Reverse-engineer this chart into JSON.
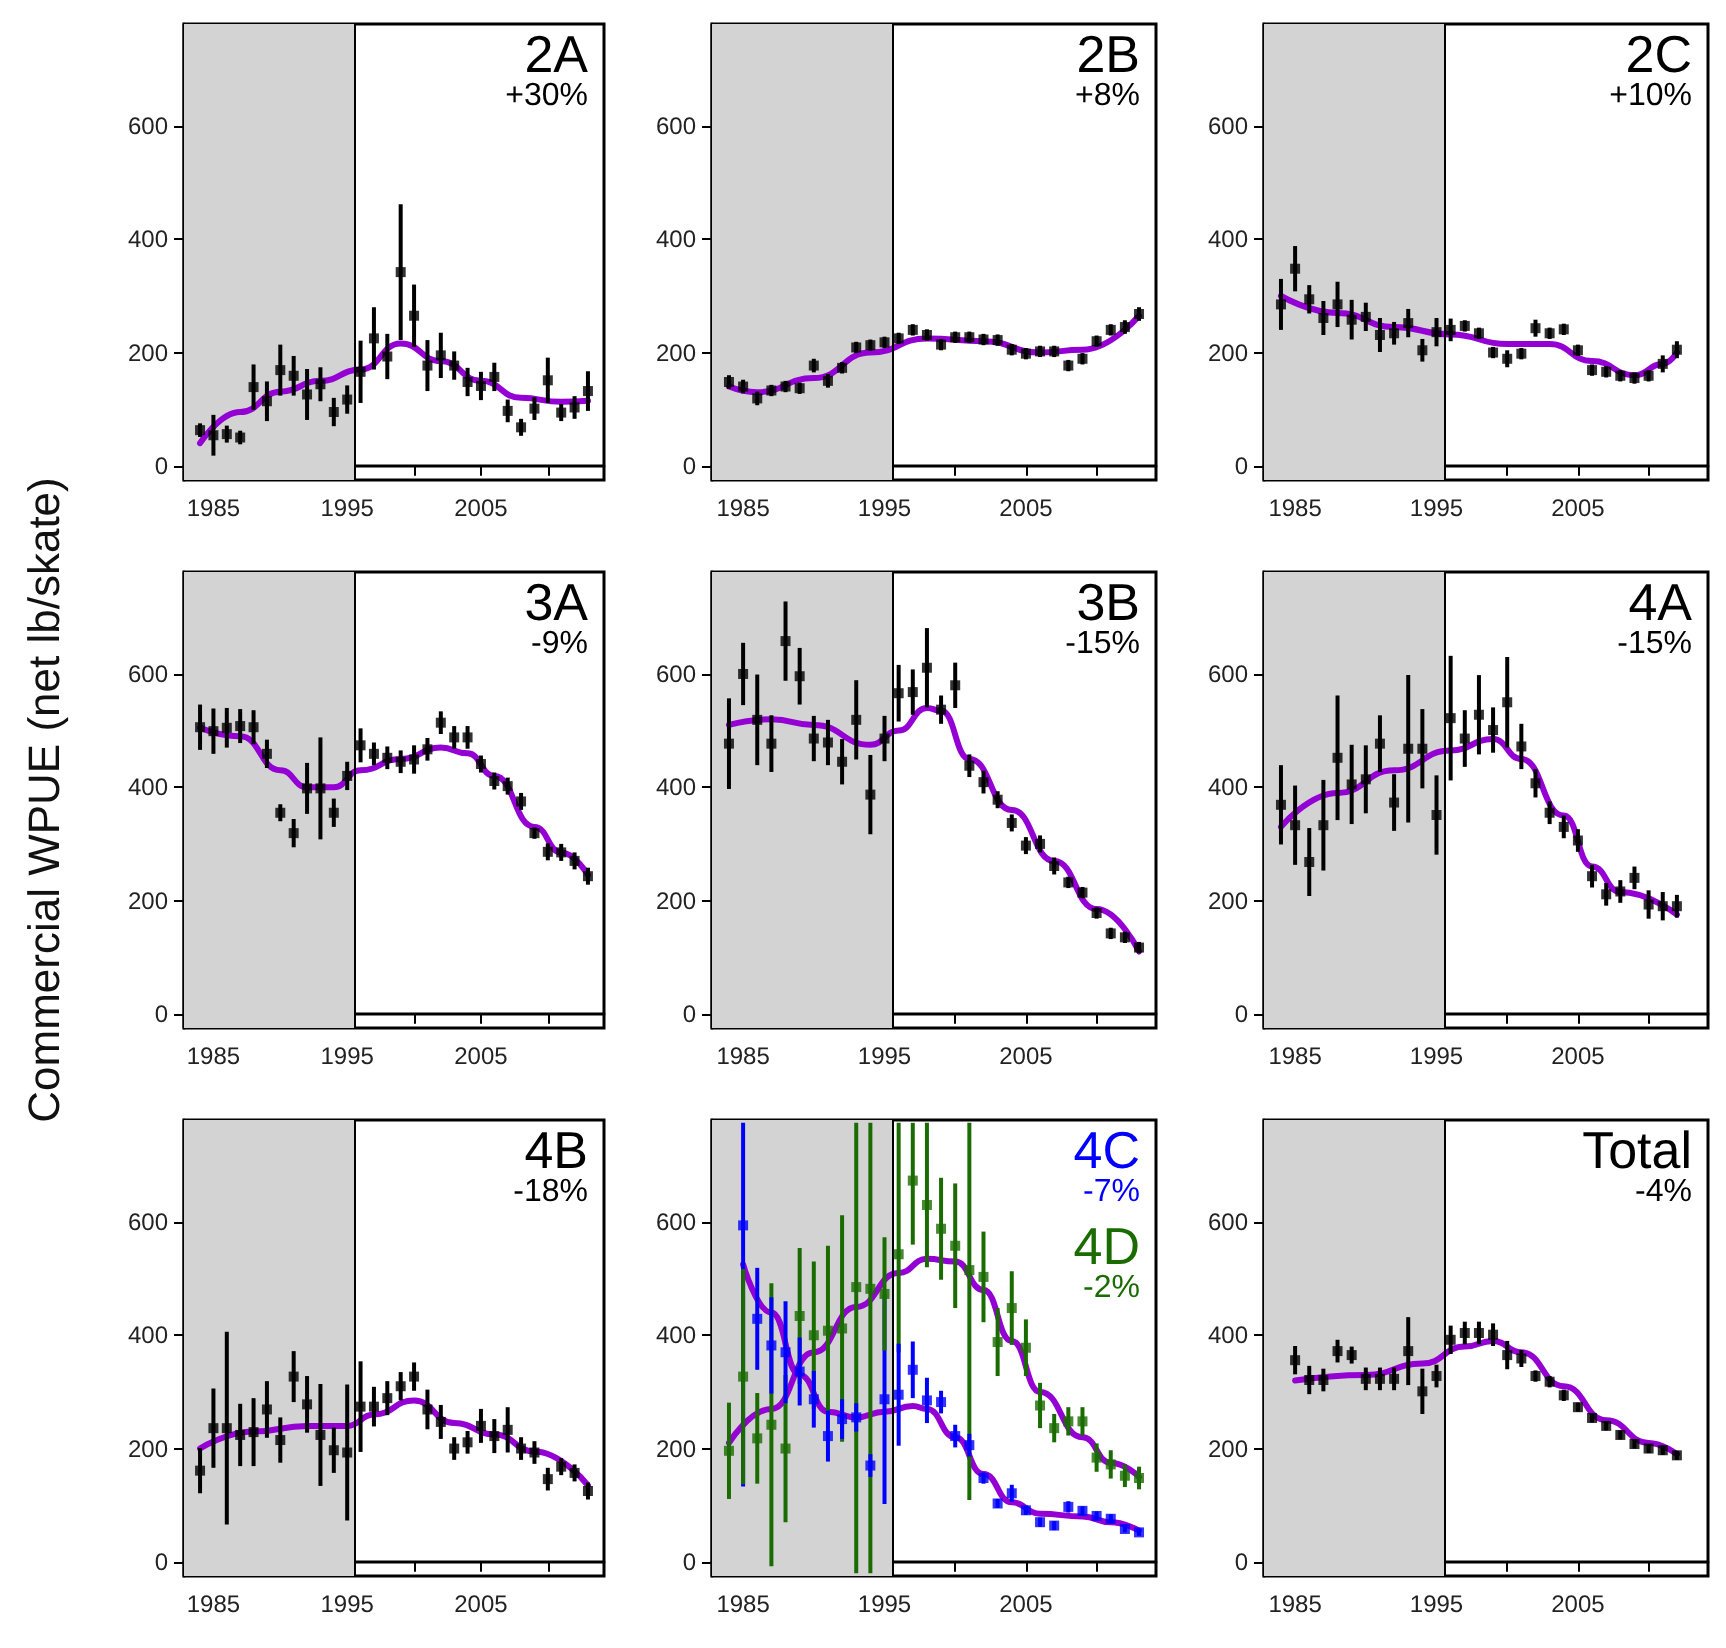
{
  "chart_data": [
    {
      "type": "scatter",
      "title": "2A",
      "subtitle": "+30%",
      "marker": "square",
      "xlim": [
        1982.8,
        2014.2
      ],
      "ylim": [
        -25,
        780
      ],
      "xticks": [
        1985,
        {
          "value": 1990,
          "label": null
        },
        1995,
        {
          "value": 2000,
          "label": null
        },
        2005,
        {
          "value": 2010,
          "label": null
        }
      ],
      "yticks": [
        0,
        200,
        400,
        600
      ],
      "bands": [
        {
          "axis": "x",
          "from": 1982.8,
          "to": 1995.6,
          "color": "#d3d3d3"
        }
      ],
      "ref_lines": [
        {
          "axis": "x",
          "value": 1995.6,
          "color": "#000000"
        }
      ],
      "x": [
        1984,
        1985,
        1986,
        1987,
        1988,
        1989,
        1990,
        1991,
        1992,
        1993,
        1994,
        1995,
        1996,
        1997,
        1998,
        1999,
        2000,
        2001,
        2002,
        2003,
        2004,
        2005,
        2006,
        2007,
        2008,
        2009,
        2010,
        2011,
        2012,
        2013
      ],
      "series": [
        {
          "color": "#000000",
          "values": [
            63,
            54,
            56,
            50,
            139,
            114,
            169,
            159,
            126,
            144,
            95,
            117,
            166,
            225,
            193,
            342,
            265,
            177,
            195,
            177,
            148,
            141,
            157,
            97,
            68,
            101,
            151,
            94,
            103,
            132
          ],
          "errors": [
            12,
            36,
            15,
            12,
            40,
            35,
            45,
            35,
            45,
            30,
            25,
            25,
            55,
            55,
            40,
            120,
            55,
            45,
            40,
            25,
            25,
            25,
            25,
            20,
            15,
            20,
            40,
            15,
            20,
            35
          ]
        },
        {
          "type": "line",
          "marker": "none",
          "color": "#9400d3",
          "x": [
            1984,
            1987,
            1990,
            1993,
            1996,
            1999,
            2002,
            2005,
            2008,
            2011,
            2013
          ],
          "values": [
            40,
            95,
            131,
            150,
            170,
            216,
            185,
            150,
            120,
            113,
            115
          ]
        }
      ]
    },
    {
      "type": "scatter",
      "title": "2B",
      "subtitle": "+8%",
      "marker": "square",
      "xlim": [
        1982.8,
        2014.2
      ],
      "ylim": [
        -25,
        780
      ],
      "xticks": [
        1985,
        {
          "value": 1990,
          "label": null
        },
        1995,
        {
          "value": 2000,
          "label": null
        },
        2005,
        {
          "value": 2010,
          "label": null
        }
      ],
      "yticks": [
        0,
        200,
        400,
        600
      ],
      "bands": [
        {
          "axis": "x",
          "from": 1982.8,
          "to": 1995.6,
          "color": "#d3d3d3"
        }
      ],
      "ref_lines": [
        {
          "axis": "x",
          "value": 1995.6,
          "color": "#000000"
        }
      ],
      "x": [
        1984,
        1985,
        1986,
        1987,
        1988,
        1989,
        1990,
        1991,
        1992,
        1993,
        1994,
        1995,
        1996,
        1997,
        1998,
        1999,
        2000,
        2001,
        2002,
        2003,
        2004,
        2005,
        2006,
        2007,
        2008,
        2009,
        2010,
        2011,
        2012,
        2013
      ],
      "series": [
        {
          "color": "#000000",
          "values": [
            148,
            140,
            119,
            133,
            140,
            137,
            177,
            150,
            173,
            209,
            213,
            218,
            225,
            240,
            231,
            214,
            227,
            227,
            223,
            222,
            205,
            198,
            202,
            202,
            177,
            189,
            220,
            240,
            245,
            268
          ],
          "errors": [
            12,
            12,
            12,
            10,
            10,
            10,
            12,
            12,
            10,
            10,
            10,
            10,
            10,
            10,
            10,
            10,
            10,
            10,
            10,
            10,
            10,
            10,
            10,
            10,
            10,
            10,
            10,
            10,
            12,
            12
          ]
        },
        {
          "type": "line",
          "marker": "none",
          "color": "#9400d3",
          "x": [
            1984,
            1986,
            1990,
            1994,
            1998,
            2002,
            2006,
            2009,
            2013
          ],
          "values": [
            140,
            130,
            155,
            200,
            225,
            220,
            200,
            205,
            265
          ]
        }
      ]
    },
    {
      "type": "scatter",
      "title": "2C",
      "subtitle": "+10%",
      "marker": "square",
      "xlim": [
        1982.8,
        2014.2
      ],
      "ylim": [
        -25,
        780
      ],
      "xticks": [
        1985,
        {
          "value": 1990,
          "label": null
        },
        1995,
        {
          "value": 2000,
          "label": null
        },
        2005,
        {
          "value": 2010,
          "label": null
        }
      ],
      "yticks": [
        0,
        200,
        400,
        600
      ],
      "bands": [
        {
          "axis": "x",
          "from": 1982.8,
          "to": 1995.6,
          "color": "#d3d3d3"
        }
      ],
      "ref_lines": [
        {
          "axis": "x",
          "value": 1995.6,
          "color": "#000000"
        }
      ],
      "x": [
        1984,
        1985,
        1986,
        1987,
        1988,
        1989,
        1990,
        1991,
        1992,
        1993,
        1994,
        1995,
        1996,
        1997,
        1998,
        1999,
        2000,
        2001,
        2002,
        2003,
        2004,
        2005,
        2006,
        2007,
        2008,
        2009,
        2010,
        2011,
        2012
      ],
      "series": [
        {
          "color": "#000000",
          "values": [
            285,
            348,
            294,
            261,
            285,
            258,
            263,
            231,
            234,
            252,
            204,
            236,
            240,
            247,
            234,
            200,
            189,
            198,
            243,
            234,
            241,
            204,
            169,
            166,
            159,
            155,
            159,
            180,
            205
          ],
          "errors": [
            45,
            40,
            25,
            30,
            40,
            35,
            25,
            30,
            20,
            25,
            20,
            25,
            20,
            10,
            10,
            10,
            15,
            10,
            15,
            10,
            10,
            10,
            10,
            10,
            10,
            10,
            10,
            15,
            15
          ]
        },
        {
          "type": "line",
          "marker": "none",
          "color": "#9400d3",
          "x": [
            1984,
            1988,
            1992,
            1996,
            2000,
            2003,
            2006,
            2009,
            2011,
            2012
          ],
          "values": [
            300,
            270,
            245,
            232,
            215,
            215,
            185,
            160,
            180,
            200
          ]
        }
      ]
    },
    {
      "type": "scatter",
      "title": "3A",
      "subtitle": "-9%",
      "ylabel": "Commercial WPUE (net lb/skate)",
      "marker": "square",
      "xlim": [
        1982.8,
        2014.2
      ],
      "ylim": [
        -25,
        780
      ],
      "xticks": [
        1985,
        {
          "value": 1990,
          "label": null
        },
        1995,
        {
          "value": 2000,
          "label": null
        },
        2005,
        {
          "value": 2010,
          "label": null
        }
      ],
      "yticks": [
        0,
        200,
        400,
        600
      ],
      "bands": [
        {
          "axis": "x",
          "from": 1982.8,
          "to": 1995.6,
          "color": "#d3d3d3"
        }
      ],
      "ref_lines": [
        {
          "axis": "x",
          "value": 1995.6,
          "color": "#000000"
        }
      ],
      "x": [
        1984,
        1985,
        1986,
        1987,
        1988,
        1989,
        1990,
        1991,
        1992,
        1993,
        1994,
        1995,
        1996,
        1997,
        1998,
        1999,
        2000,
        2001,
        2002,
        2003,
        2004,
        2005,
        2006,
        2007,
        2008,
        2009,
        2010,
        2011,
        2012,
        2013
      ],
      "series": [
        {
          "color": "#000000",
          "values": [
            506,
            499,
            505,
            508,
            506,
            459,
            355,
            319,
            398,
            398,
            355,
            420,
            474,
            459,
            452,
            445,
            449,
            467,
            514,
            488,
            488,
            441,
            411,
            402,
            375,
            319,
            286,
            285,
            270,
            243
          ],
          "errors": [
            40,
            40,
            35,
            30,
            30,
            25,
            15,
            25,
            45,
            90,
            25,
            25,
            30,
            20,
            20,
            20,
            25,
            20,
            20,
            20,
            20,
            15,
            15,
            15,
            15,
            10,
            15,
            15,
            15,
            15
          ]
        },
        {
          "type": "line",
          "marker": "none",
          "color": "#9400d3",
          "x": [
            1984,
            1987,
            1990,
            1992,
            1994,
            1996,
            1999,
            2002,
            2004,
            2006,
            2009,
            2011,
            2013
          ],
          "values": [
            505,
            490,
            430,
            400,
            400,
            430,
            450,
            470,
            460,
            420,
            330,
            285,
            245
          ]
        }
      ]
    },
    {
      "type": "scatter",
      "title": "3B",
      "subtitle": "-15%",
      "marker": "square",
      "xlim": [
        1982.8,
        2014.2
      ],
      "ylim": [
        -25,
        780
      ],
      "xticks": [
        1985,
        {
          "value": 1990,
          "label": null
        },
        1995,
        {
          "value": 2000,
          "label": null
        },
        2005,
        {
          "value": 2010,
          "label": null
        }
      ],
      "yticks": [
        0,
        200,
        400,
        600
      ],
      "bands": [
        {
          "axis": "x",
          "from": 1982.8,
          "to": 1995.6,
          "color": "#d3d3d3"
        }
      ],
      "ref_lines": [
        {
          "axis": "x",
          "value": 1995.6,
          "color": "#000000"
        }
      ],
      "x": [
        1984,
        1985,
        1986,
        1987,
        1988,
        1989,
        1990,
        1991,
        1992,
        1993,
        1994,
        1995,
        1996,
        1997,
        1998,
        1999,
        2000,
        2001,
        2002,
        2003,
        2004,
        2005,
        2006,
        2007,
        2008,
        2009,
        2010,
        2011,
        2012,
        2013
      ],
      "series": [
        {
          "color": "#000000",
          "values": [
            477,
            600,
            519,
            477,
            658,
            596,
            486,
            479,
            445,
            519,
            387,
            486,
            566,
            568,
            611,
            537,
            580,
            438,
            409,
            378,
            337,
            297,
            300,
            261,
            232,
            214,
            178,
            142,
            135,
            117
          ],
          "errors": [
            80,
            55,
            80,
            50,
            70,
            50,
            40,
            40,
            40,
            70,
            70,
            40,
            50,
            40,
            70,
            25,
            40,
            20,
            20,
            15,
            15,
            15,
            15,
            15,
            10,
            10,
            10,
            10,
            10,
            10
          ]
        },
        {
          "type": "line",
          "marker": "none",
          "color": "#9400d3",
          "x": [
            1984,
            1987,
            1990,
            1994,
            1996,
            1998,
            1999,
            2001,
            2004,
            2007,
            2010,
            2013
          ],
          "values": [
            510,
            520,
            510,
            475,
            500,
            540,
            535,
            450,
            360,
            270,
            185,
            110
          ]
        }
      ]
    },
    {
      "type": "scatter",
      "title": "4A",
      "subtitle": "-15%",
      "marker": "square",
      "xlim": [
        1982.8,
        2014.2
      ],
      "ylim": [
        -25,
        780
      ],
      "xticks": [
        1985,
        {
          "value": 1990,
          "label": null
        },
        1995,
        {
          "value": 2000,
          "label": null
        },
        2005,
        {
          "value": 2010,
          "label": null
        }
      ],
      "yticks": [
        0,
        200,
        400,
        600
      ],
      "bands": [
        {
          "axis": "x",
          "from": 1982.8,
          "to": 1995.6,
          "color": "#d3d3d3"
        }
      ],
      "ref_lines": [
        {
          "axis": "x",
          "value": 1995.6,
          "color": "#000000"
        }
      ],
      "x": [
        1984,
        1985,
        1986,
        1987,
        1988,
        1989,
        1990,
        1991,
        1992,
        1993,
        1994,
        1995,
        1996,
        1997,
        1998,
        1999,
        2000,
        2001,
        2002,
        2003,
        2004,
        2005,
        2006,
        2007,
        2008,
        2009,
        2010,
        2011,
        2012
      ],
      "series": [
        {
          "color": "#000000",
          "values": [
            369,
            333,
            268,
            333,
            452,
            405,
            414,
            477,
            373,
            468,
            468,
            351,
            522,
            486,
            528,
            501,
            550,
            472,
            407,
            355,
            330,
            306,
            243,
            211,
            216,
            240,
            193,
            190,
            190
          ],
          "errors": [
            70,
            70,
            60,
            80,
            110,
            70,
            60,
            50,
            50,
            130,
            70,
            70,
            110,
            50,
            70,
            40,
            80,
            40,
            25,
            20,
            20,
            20,
            20,
            20,
            20,
            20,
            25,
            25,
            20
          ]
        },
        {
          "type": "line",
          "marker": "none",
          "color": "#9400d3",
          "x": [
            1984,
            1988,
            1992,
            1996,
            1999,
            2001,
            2004,
            2006,
            2008,
            2012
          ],
          "values": [
            330,
            390,
            430,
            465,
            485,
            450,
            350,
            260,
            215,
            175
          ]
        }
      ]
    },
    {
      "type": "scatter",
      "title": "4B",
      "subtitle": "-18%",
      "marker": "square",
      "xlim": [
        1982.8,
        2014.2
      ],
      "ylim": [
        -25,
        780
      ],
      "xticks": [
        1985,
        {
          "value": 1990,
          "label": null
        },
        1995,
        {
          "value": 2000,
          "label": null
        },
        2005,
        {
          "value": 2010,
          "label": null
        }
      ],
      "yticks": [
        0,
        200,
        400,
        600
      ],
      "bands": [
        {
          "axis": "x",
          "from": 1982.8,
          "to": 1995.6,
          "color": "#d3d3d3"
        }
      ],
      "ref_lines": [
        {
          "axis": "x",
          "value": 1995.6,
          "color": "#000000"
        }
      ],
      "x": [
        1984,
        1985,
        1986,
        1987,
        1988,
        1989,
        1990,
        1991,
        1992,
        1993,
        1994,
        1995,
        1996,
        1997,
        1998,
        1999,
        2000,
        2001,
        2002,
        2003,
        2004,
        2005,
        2006,
        2007,
        2008,
        2009,
        2010,
        2011,
        2012,
        2013
      ],
      "series": [
        {
          "color": "#000000",
          "values": [
            161,
            236,
            236,
            224,
            229,
            269,
            215,
            327,
            278,
            224,
            197,
            193,
            274,
            274,
            289,
            310,
            327,
            269,
            247,
            200,
            211,
            240,
            222,
            233,
            200,
            193,
            146,
            168,
            157,
            125
          ],
          "errors": [
            40,
            70,
            170,
            55,
            60,
            50,
            40,
            45,
            50,
            90,
            40,
            120,
            80,
            35,
            30,
            25,
            25,
            35,
            30,
            20,
            20,
            30,
            30,
            40,
            20,
            20,
            20,
            15,
            15,
            15
          ]
        },
        {
          "type": "line",
          "marker": "none",
          "color": "#9400d3",
          "x": [
            1984,
            1988,
            1992,
            1995,
            1997,
            2000,
            2003,
            2006,
            2009,
            2013
          ],
          "values": [
            200,
            230,
            240,
            240,
            260,
            285,
            245,
            225,
            195,
            135
          ]
        }
      ]
    },
    {
      "type": "scatter",
      "annotations": [
        "-7%",
        "-2%"
      ],
      "marker": "square",
      "xlim": [
        1982.8,
        2014.2
      ],
      "ylim": [
        -25,
        780
      ],
      "xticks": [
        1985,
        {
          "value": 1990,
          "label": null
        },
        1995,
        {
          "value": 2000,
          "label": null
        },
        2005,
        {
          "value": 2010,
          "label": null
        }
      ],
      "yticks": [
        0,
        200,
        400,
        600
      ],
      "bands": [
        {
          "axis": "x",
          "from": 1982.8,
          "to": 1995.6,
          "color": "#d3d3d3"
        }
      ],
      "ref_lines": [
        {
          "axis": "x",
          "value": 1995.6,
          "color": "#000000"
        }
      ],
      "series": [
        {
          "name": "4C",
          "color": "#0000ff",
          "x": [
            1985,
            1986,
            1987,
            1988,
            1989,
            1990,
            1991,
            1992,
            1993,
            1994,
            1995,
            1996,
            1997,
            1998,
            1999,
            2000,
            2001,
            2002,
            2003,
            2004,
            2005,
            2006,
            2007,
            2008,
            2009,
            2010,
            2011,
            2012,
            2013
          ],
          "values": [
            594,
            429,
            382,
            370,
            336,
            287,
            222,
            252,
            255,
            170,
            287,
            295,
            339,
            285,
            282,
            222,
            206,
            148,
            103,
            121,
            91,
            70,
            64,
            97,
            90,
            81,
            76,
            58,
            52
          ],
          "errors": [
            [
              133,
              775
            ],
            90,
            85,
            90,
            60,
            50,
            45,
            35,
            25,
            20,
            185,
            90,
            50,
            40,
            20,
            20,
            20,
            10,
            8,
            15,
            8,
            8,
            8,
            10,
            8,
            8,
            8,
            6,
            6
          ]
        },
        {
          "name": "4D",
          "color": "#1a6b00",
          "x": [
            1984,
            1985,
            1986,
            1987,
            1988,
            1989,
            1990,
            1991,
            1992,
            1993,
            1994,
            1995,
            1996,
            1997,
            1998,
            1999,
            2000,
            2001,
            2002,
            2003,
            2004,
            2005,
            2006,
            2007,
            2008,
            2009,
            2010,
            2011,
            2012,
            2013
          ],
          "values": [
            196,
            327,
            218,
            242,
            200,
            434,
            400,
            408,
            412,
            485,
            482,
            473,
            543,
            673,
            630,
            588,
            558,
            515,
            503,
            388,
            448,
            378,
            276,
            236,
            248,
            248,
            184,
            172,
            152,
            148
          ],
          "errors": [
            85,
            190,
            80,
            250,
            130,
            120,
            130,
            150,
            200,
            [
              -20,
              775
            ],
            [
              -20,
              775
            ],
            100,
            [
              370,
              775
            ],
            [
              560,
              775
            ],
            [
              520,
              775
            ],
            90,
            110,
            [
              109,
              775
            ],
            80,
            60,
            65,
            50,
            40,
            25,
            25,
            25,
            25,
            25,
            20,
            20
          ]
        },
        {
          "type": "line",
          "marker": "none",
          "color": "#9400d3",
          "x": [
            1985,
            1987,
            1989,
            1991,
            1993,
            1995,
            1997,
            1998,
            2000,
            2002,
            2004,
            2006,
            2009,
            2011,
            2013
          ],
          "values": [
            525,
            440,
            330,
            265,
            255,
            265,
            275,
            270,
            220,
            155,
            105,
            85,
            80,
            70,
            55
          ]
        },
        {
          "type": "line",
          "marker": "none",
          "color": "#9400d3",
          "x": [
            1984,
            1987,
            1990,
            1993,
            1996,
            1998,
            2000,
            2002,
            2004,
            2006,
            2009,
            2011,
            2013
          ],
          "values": [
            210,
            270,
            370,
            450,
            510,
            535,
            530,
            480,
            390,
            300,
            220,
            175,
            150
          ]
        }
      ]
    },
    {
      "type": "scatter",
      "title": "Total",
      "subtitle": "-4%",
      "marker": "square",
      "xlim": [
        1982.8,
        2014.2
      ],
      "ylim": [
        -25,
        780
      ],
      "xticks": [
        1985,
        {
          "value": 1990,
          "label": null
        },
        1995,
        {
          "value": 2000,
          "label": null
        },
        2005,
        {
          "value": 2010,
          "label": null
        }
      ],
      "yticks": [
        0,
        200,
        400,
        600
      ],
      "bands": [
        {
          "axis": "x",
          "from": 1982.8,
          "to": 1995.6,
          "color": "#d3d3d3"
        }
      ],
      "ref_lines": [
        {
          "axis": "x",
          "value": 1995.6,
          "color": "#000000"
        }
      ],
      "x": [
        1985,
        1986,
        1987,
        1988,
        1989,
        1990,
        1991,
        1992,
        1993,
        1994,
        1995,
        1996,
        1997,
        1998,
        1999,
        2000,
        2001,
        2002,
        2003,
        2004,
        2005,
        2006,
        2007,
        2008,
        2009,
        2010,
        2011,
        2012
      ],
      "series": [
        {
          "color": "#000000",
          "values": [
            356,
            321,
            321,
            372,
            365,
            323,
            323,
            323,
            372,
            301,
            328,
            392,
            404,
            404,
            401,
            365,
            359,
            328,
            318,
            294,
            273,
            254,
            240,
            224,
            208,
            200,
            197,
            188
          ],
          "errors": [
            25,
            25,
            20,
            20,
            15,
            20,
            20,
            20,
            60,
            40,
            20,
            25,
            20,
            20,
            20,
            25,
            15,
            10,
            10,
            10,
            8,
            8,
            8,
            8,
            8,
            8,
            8,
            8
          ]
        },
        {
          "type": "line",
          "marker": "none",
          "color": "#9400d3",
          "x": [
            1985,
            1990,
            1994,
            1997,
            1999,
            2001,
            2004,
            2007,
            2010,
            2012
          ],
          "values": [
            320,
            330,
            350,
            380,
            390,
            370,
            310,
            250,
            210,
            190
          ]
        }
      ]
    }
  ]
}
